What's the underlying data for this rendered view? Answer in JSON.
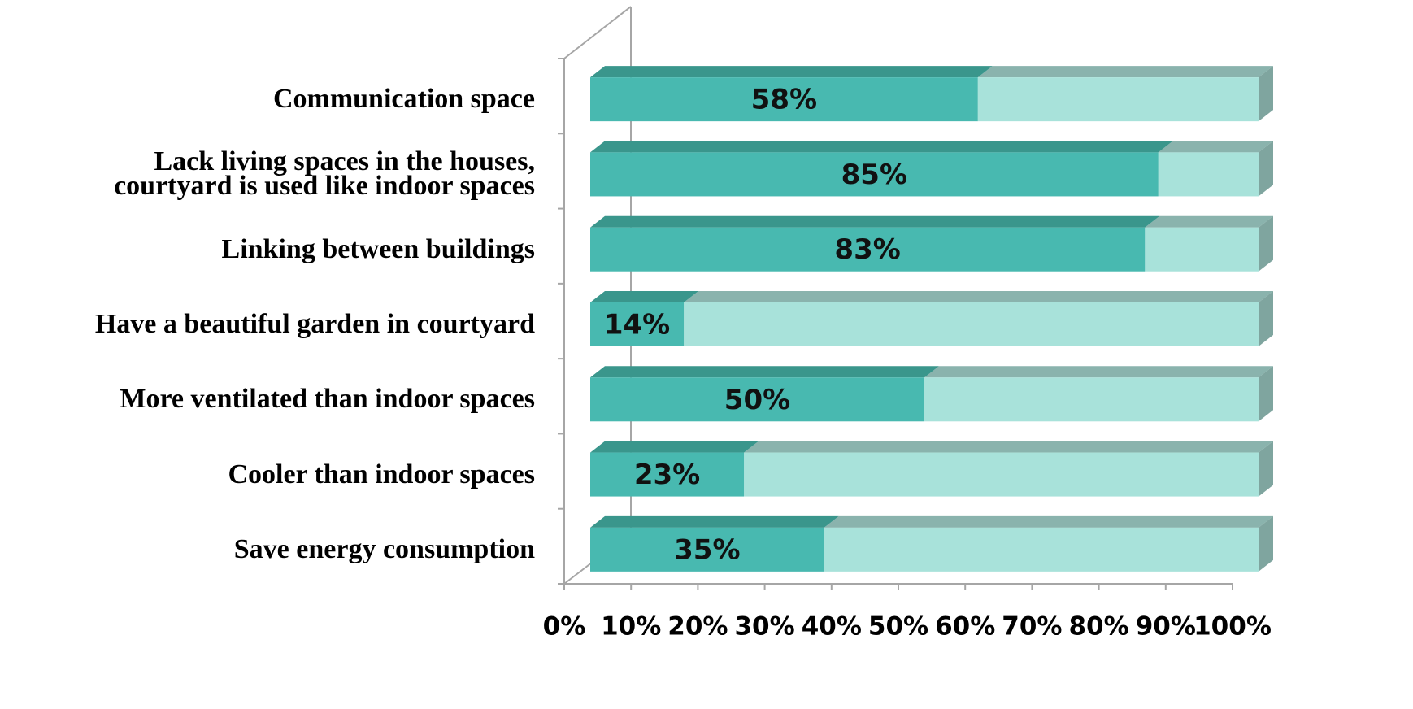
{
  "chart_data": {
    "type": "bar3d_stacked_horizontal",
    "categories": [
      "Communication space",
      "Lack living spaces in the houses,\ncourtyard is used like indoor spaces",
      "Linking between buildings",
      "Have a beautiful garden in courtyard",
      "More ventilated than indoor spaces",
      "Cooler than indoor spaces",
      "Save energy consumption"
    ],
    "series": [
      {
        "color": "#48b9b0",
        "top_color": "#3a968c",
        "values": [
          58,
          85,
          83,
          14,
          50,
          23,
          35
        ],
        "value_labels": [
          "58%",
          "85%",
          "83%",
          "14%",
          "50%",
          "23%",
          "35%"
        ]
      },
      {
        "color": "#a8e2da",
        "top_color": "#8ab3ad",
        "values": [
          42,
          15,
          17,
          86,
          50,
          77,
          65
        ]
      }
    ],
    "side_color": "#7fa59f",
    "xlim": [
      0,
      100
    ],
    "xticks": [
      {
        "value": 0,
        "label": "0%"
      },
      {
        "value": 10,
        "label": "10%"
      },
      {
        "value": 20,
        "label": "20%"
      },
      {
        "value": 30,
        "label": "30%"
      },
      {
        "value": 40,
        "label": "40%"
      },
      {
        "value": 50,
        "label": "50%"
      },
      {
        "value": 60,
        "label": "60%"
      },
      {
        "value": 70,
        "label": "70%"
      },
      {
        "value": 80,
        "label": "80%"
      },
      {
        "value": 90,
        "label": "90%"
      },
      {
        "value": 100,
        "label": "100%"
      }
    ]
  }
}
